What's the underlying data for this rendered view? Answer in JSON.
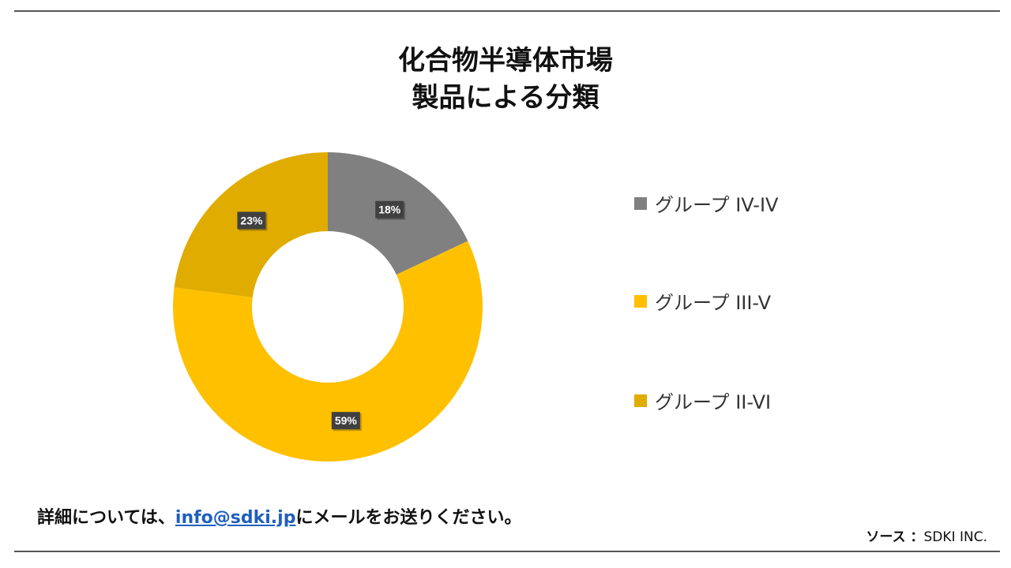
{
  "title_line1": "化合物半導体市場",
  "title_line2": "製品による分類",
  "chart_data": {
    "type": "pie",
    "subtype": "donut",
    "title": "化合物半導体市場 製品による分類",
    "categories": [
      "グループ IV-IV",
      "グループ III-V",
      "グループ II-VI"
    ],
    "values": [
      18,
      59,
      23
    ],
    "labels": [
      "18%",
      "59%",
      "23%"
    ],
    "colors": [
      "#808080",
      "#FFC000",
      "#E0AC00"
    ],
    "legend_position": "right"
  },
  "footer": {
    "before": "詳細については、",
    "email": "info@sdki.jp",
    "after": "にメールをお送りください。"
  },
  "source": {
    "label": "ソース ：",
    "value": "SDKI INC."
  }
}
